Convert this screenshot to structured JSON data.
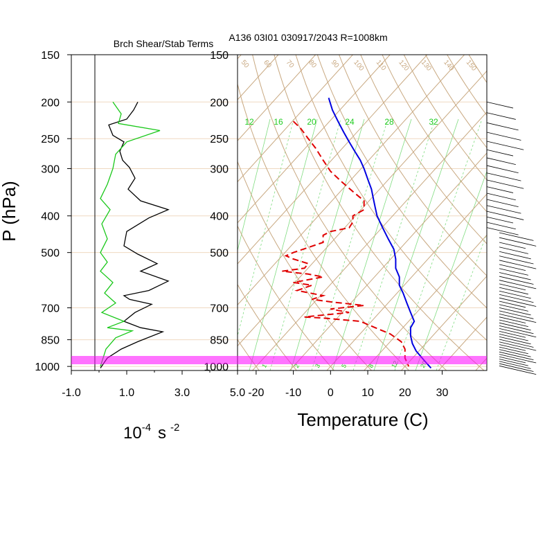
{
  "figure_title": "A136 03I01 030917/2043 R=1008km",
  "chart_data": [
    {
      "type": "line",
      "title": "Brch Shear/Stab Terms",
      "ylabel": "P (hPa)",
      "xlabel_base": "10",
      "xlabel_exp": "-4",
      "xlabel_unit": "s",
      "xlabel_unit_exp": "-2",
      "xlim": [
        -1.0,
        5.0
      ],
      "x_ticks": [
        "-1.0",
        "1.0",
        "3.0",
        "5.0"
      ],
      "y_scale": "log",
      "ylim": [
        1025,
        150
      ],
      "pressure_levels": [
        150,
        200,
        250,
        300,
        400,
        500,
        700,
        850,
        1000
      ],
      "series": [
        {
          "color": "#000000",
          "points": [
            [
              1.4,
              200
            ],
            [
              1.25,
              210
            ],
            [
              1.0,
              222
            ],
            [
              0.35,
              230
            ],
            [
              0.5,
              245
            ],
            [
              0.9,
              255
            ],
            [
              0.75,
              270
            ],
            [
              0.85,
              285
            ],
            [
              1.1,
              298
            ],
            [
              1.3,
              318
            ],
            [
              1.05,
              340
            ],
            [
              1.5,
              365
            ],
            [
              2.5,
              385
            ],
            [
              1.8,
              405
            ],
            [
              1.0,
              440
            ],
            [
              0.9,
              480
            ],
            [
              1.4,
              505
            ],
            [
              2.1,
              535
            ],
            [
              1.5,
              560
            ],
            [
              2.5,
              595
            ],
            [
              1.8,
              630
            ],
            [
              0.9,
              650
            ],
            [
              1.1,
              665
            ],
            [
              1.9,
              685
            ],
            [
              1.3,
              720
            ],
            [
              0.9,
              760
            ],
            [
              1.5,
              790
            ],
            [
              2.3,
              810
            ],
            [
              1.4,
              860
            ],
            [
              0.8,
              900
            ],
            [
              0.3,
              950
            ],
            [
              0.05,
              1010
            ]
          ]
        },
        {
          "color": "#19c819",
          "points": [
            [
              0.5,
              200
            ],
            [
              0.8,
              215
            ],
            [
              0.7,
              228
            ],
            [
              2.2,
              238
            ],
            [
              1.0,
              255
            ],
            [
              0.6,
              275
            ],
            [
              0.5,
              300
            ],
            [
              0.3,
              330
            ],
            [
              0.05,
              360
            ],
            [
              0.4,
              385
            ],
            [
              0.1,
              420
            ],
            [
              0.3,
              460
            ],
            [
              0.05,
              500
            ],
            [
              0.3,
              530
            ],
            [
              0.05,
              560
            ],
            [
              0.5,
              600
            ],
            [
              0.2,
              640
            ],
            [
              0.6,
              680
            ],
            [
              0.1,
              720
            ],
            [
              0.9,
              760
            ],
            [
              0.3,
              790
            ],
            [
              1.2,
              805
            ],
            [
              0.6,
              840
            ],
            [
              0.25,
              900
            ],
            [
              0.05,
              1000
            ]
          ]
        }
      ]
    },
    {
      "type": "line",
      "title": "",
      "xlabel": "Temperature (C)",
      "xlim": [
        -25,
        42
      ],
      "x_ticks": [
        "-20",
        "-10",
        "0",
        "10",
        "20",
        "30"
      ],
      "y_scale": "log",
      "ylim": [
        1025,
        150
      ],
      "y_ticks": [
        "150",
        "200",
        "250",
        "300",
        "400",
        "500",
        "700",
        "850",
        "1000"
      ],
      "dry_adiabat_labels": [
        "50",
        "60",
        "70",
        "80",
        "90",
        "100",
        "110",
        "120",
        "130",
        "140",
        "150"
      ],
      "mixing_ratio_labels": [
        "12",
        "16",
        "20",
        "24",
        "28",
        "32"
      ],
      "mixing_ratio_low_labels": [
        "1",
        "2",
        "3",
        "5",
        "8",
        "12",
        "20"
      ],
      "series": [
        {
          "name_hidden": "temperature",
          "color": "#0000e0",
          "points": [
            [
              -0.5,
              195
            ],
            [
              0.5,
              210
            ],
            [
              2,
              225
            ],
            [
              3.5,
              240
            ],
            [
              5,
              255
            ],
            [
              6.5,
              270
            ],
            [
              8,
              285
            ],
            [
              9,
              300
            ],
            [
              10,
              320
            ],
            [
              11,
              340
            ],
            [
              11.5,
              360
            ],
            [
              12,
              380
            ],
            [
              12.5,
              400
            ],
            [
              14,
              430
            ],
            [
              15.5,
              460
            ],
            [
              17,
              490
            ],
            [
              17.5,
              520
            ],
            [
              17.5,
              550
            ],
            [
              18.5,
              580
            ],
            [
              18.5,
              610
            ],
            [
              19.5,
              640
            ],
            [
              20.5,
              680
            ],
            [
              21.5,
              720
            ],
            [
              22.5,
              760
            ],
            [
              21.5,
              790
            ],
            [
              21.5,
              830
            ],
            [
              22,
              870
            ],
            [
              23,
              910
            ],
            [
              25,
              960
            ],
            [
              27,
              1010
            ]
          ]
        },
        {
          "name_hidden": "dewpoint",
          "color": "#e00000",
          "points": [
            [
              -10,
              225
            ],
            [
              -8,
              235
            ],
            [
              -6,
              250
            ],
            [
              -4,
              265
            ],
            [
              -2,
              285
            ],
            [
              0,
              305
            ],
            [
              3,
              325
            ],
            [
              6,
              345
            ],
            [
              9,
              365
            ],
            [
              9,
              385
            ],
            [
              6,
              400
            ],
            [
              6,
              415
            ],
            [
              5,
              430
            ],
            [
              0,
              440
            ],
            [
              -2,
              450
            ],
            [
              -2,
              470
            ],
            [
              -10,
              500
            ],
            [
              -12,
              510
            ],
            [
              -10,
              520
            ],
            [
              -6,
              535
            ],
            [
              -7,
              550
            ],
            [
              -13,
              560
            ],
            [
              -6,
              570
            ],
            [
              -2,
              580
            ],
            [
              -10,
              600
            ],
            [
              -5,
              610
            ],
            [
              -9,
              630
            ],
            [
              -2,
              650
            ],
            [
              -5,
              665
            ],
            [
              0,
              675
            ],
            [
              9,
              690
            ],
            [
              0,
              705
            ],
            [
              5,
              720
            ],
            [
              -7,
              740
            ],
            [
              -2,
              745
            ],
            [
              8,
              760
            ],
            [
              12,
              790
            ],
            [
              16,
              820
            ],
            [
              19,
              860
            ],
            [
              20,
              900
            ],
            [
              20,
              950
            ],
            [
              21,
              1000
            ]
          ]
        }
      ]
    }
  ]
}
